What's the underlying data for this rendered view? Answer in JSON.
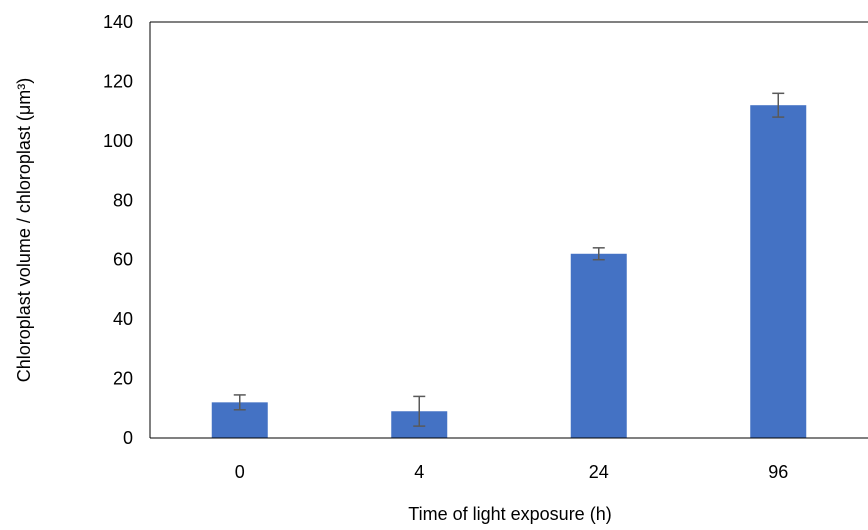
{
  "chart_data": {
    "type": "bar",
    "categories": [
      "0",
      "4",
      "24",
      "96"
    ],
    "values": [
      12,
      9,
      62,
      112
    ],
    "error": [
      2.5,
      5,
      2,
      4
    ],
    "ylim": [
      0,
      140
    ],
    "yticks": [
      0,
      20,
      40,
      60,
      80,
      100,
      120,
      140
    ],
    "xlabel": "Time of light exposure (h)",
    "ylabel": "Chloroplast  volume / chloroplast (μm³)",
    "grid": false,
    "bar_color": "#4472C4",
    "error_color": "#595959"
  }
}
